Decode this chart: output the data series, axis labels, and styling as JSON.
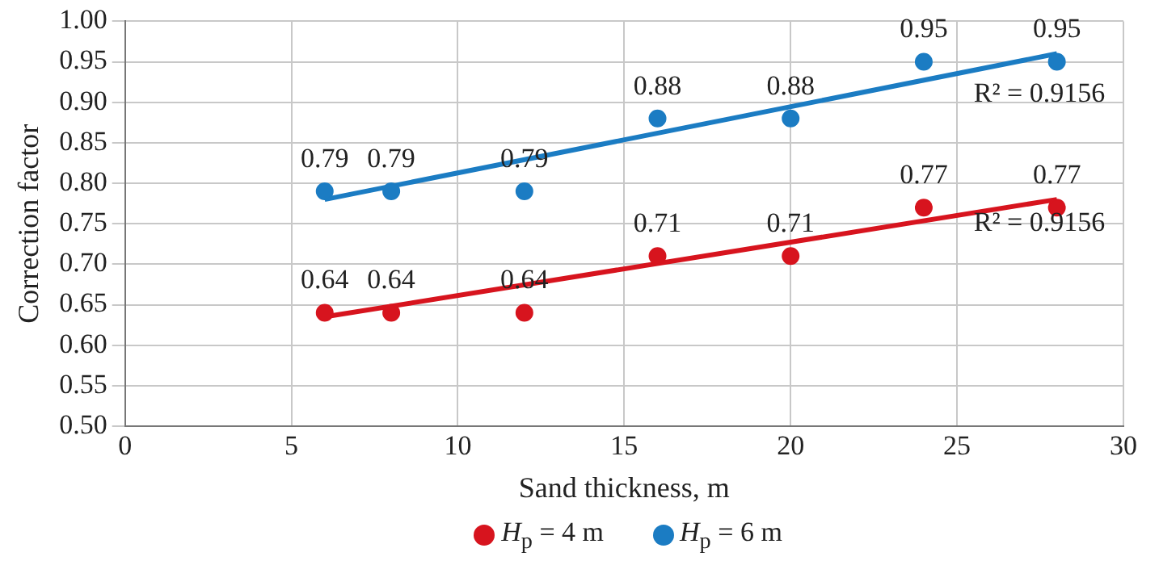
{
  "chart_data": {
    "type": "scatter",
    "xlabel": "Sand thickness, m",
    "ylabel": "Correction factor",
    "xlim": [
      0,
      30
    ],
    "xticks": [
      0,
      5,
      10,
      15,
      20,
      25,
      30
    ],
    "ylim": [
      0.5,
      1.0
    ],
    "yticks": [
      {
        "value": 0.5,
        "label": "0.50"
      },
      {
        "value": 0.55,
        "label": "0.55"
      },
      {
        "value": 0.6,
        "label": "0.60"
      },
      {
        "value": 0.65,
        "label": "0.65"
      },
      {
        "value": 0.7,
        "label": "0.70"
      },
      {
        "value": 0.75,
        "label": "0.75"
      },
      {
        "value": 0.8,
        "label": "0.80"
      },
      {
        "value": 0.85,
        "label": "0.85"
      },
      {
        "value": 0.9,
        "label": "0.90"
      },
      {
        "value": 0.95,
        "label": "0.95"
      },
      {
        "value": 1.0,
        "label": "1.00"
      }
    ],
    "grid": true,
    "legend": "bottom",
    "marker": "circle",
    "series": [
      {
        "name": "H$_{p}$ = 4 m",
        "color": "#d7141e",
        "x": [
          6,
          8,
          12,
          16,
          20,
          24,
          28
        ],
        "values": [
          0.64,
          0.64,
          0.64,
          0.71,
          0.71,
          0.77,
          0.77
        ],
        "value_labels": [
          "0.64",
          "0.64",
          "0.64",
          "0.71",
          "0.71",
          "0.77",
          "0.77"
        ]
      },
      {
        "name": "H$_{p}$ = 6 m",
        "color": "#1b7cc3",
        "x": [
          6,
          8,
          12,
          16,
          20,
          24,
          28
        ],
        "values": [
          0.79,
          0.79,
          0.79,
          0.88,
          0.88,
          0.95,
          0.95
        ],
        "value_labels": [
          "0.79",
          "0.79",
          "0.79",
          "0.88",
          "0.88",
          "0.95",
          "0.95"
        ]
      },
      {
        "type": "line",
        "marker": "none",
        "color": "#d7141e",
        "x": [
          6,
          28
        ],
        "values": [
          0.635,
          0.78
        ]
      },
      {
        "type": "line",
        "marker": "none",
        "color": "#1b7cc3",
        "x": [
          6,
          28
        ],
        "values": [
          0.78,
          0.96
        ]
      }
    ],
    "annotations": [
      "R² = 0.9156",
      "R² = 0.9156"
    ]
  }
}
